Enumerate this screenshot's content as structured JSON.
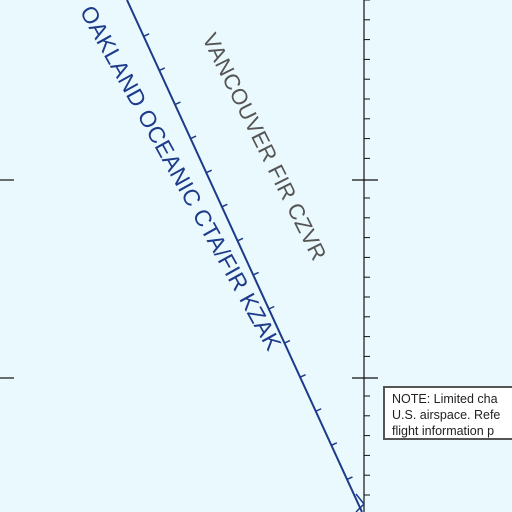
{
  "map": {
    "background_color": "#eaf9fd",
    "boundary_color": "#1d3b8a",
    "grid_color": "#111111",
    "labels": {
      "oakland": "OAKLAND OCEANIC CTA/FIR KZAK",
      "vancouver": "VANCOUVER FIR CZVR"
    },
    "note": {
      "line1": "NOTE: Limited cha",
      "line2": "U.S. airspace. Refe",
      "line3": "flight information p"
    }
  }
}
